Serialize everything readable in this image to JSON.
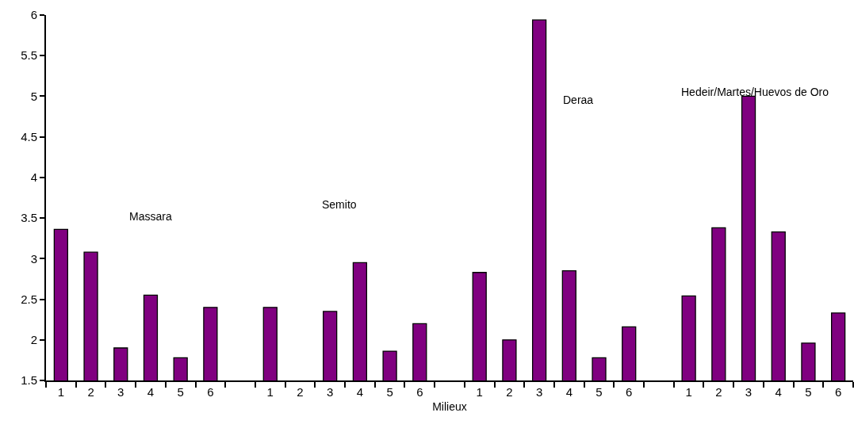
{
  "chart_data": {
    "type": "bar",
    "xlabel": "Milieux",
    "categories": [
      "1",
      "2",
      "3",
      "4",
      "5",
      "6",
      null,
      "1",
      "2",
      "3",
      "4",
      "5",
      "6",
      null,
      "1",
      "2",
      "3",
      "4",
      "5",
      "6",
      null,
      "1",
      "2",
      "3",
      "4",
      "5",
      "6"
    ],
    "values": [
      3.36,
      3.08,
      1.9,
      2.55,
      1.78,
      2.4,
      null,
      2.4,
      null,
      2.35,
      2.95,
      1.86,
      2.2,
      null,
      2.83,
      2.0,
      5.94,
      2.85,
      1.78,
      2.16,
      null,
      2.54,
      3.38,
      5.0,
      3.33,
      1.96,
      2.33
    ],
    "color": "#800080",
    "ylim": [
      1.5,
      6
    ],
    "yticks": [
      1.5,
      2,
      2.5,
      3,
      3.5,
      4,
      4.5,
      5,
      5.5,
      6
    ],
    "annotations": [
      "Massara",
      "Semito",
      "Deraa",
      "Hedeir/Martes/Huevos de Oro"
    ]
  }
}
